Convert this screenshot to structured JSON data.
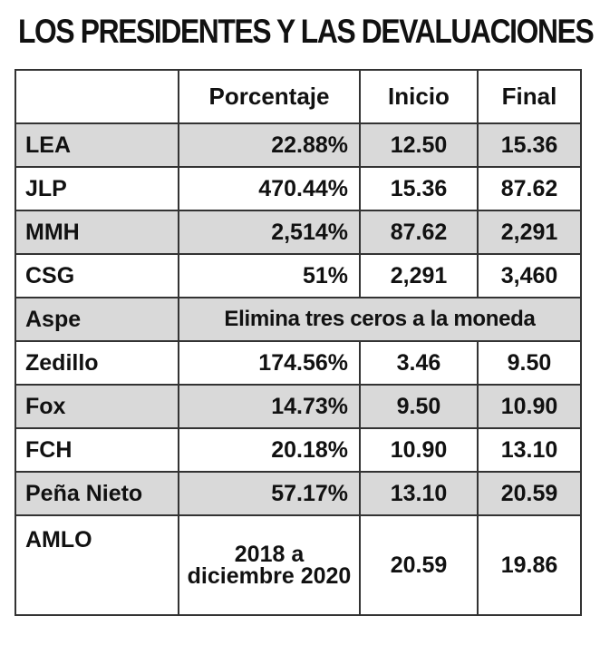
{
  "title": "LOS PRESIDENTES Y LAS DEVALUACIONES",
  "headers": {
    "blank": "",
    "porcentaje": "Porcentaje",
    "inicio": "Inicio",
    "final": "Final"
  },
  "rows": [
    {
      "name": "LEA",
      "porcentaje": "22.88%",
      "inicio": "12.50",
      "final": "15.36"
    },
    {
      "name": "JLP",
      "porcentaje": "470.44%",
      "inicio": "15.36",
      "final": "87.62"
    },
    {
      "name": "MMH",
      "porcentaje": "2,514%",
      "inicio": "87.62",
      "final": "2,291"
    },
    {
      "name": "CSG",
      "porcentaje": "51%",
      "inicio": "2,291",
      "final": "3,460"
    },
    {
      "name": "Aspe",
      "note": "Elimina tres ceros a la moneda"
    },
    {
      "name": "Zedillo",
      "porcentaje": "174.56%",
      "inicio": "3.46",
      "final": "9.50"
    },
    {
      "name": "Fox",
      "porcentaje": "14.73%",
      "inicio": "9.50",
      "final": "10.90"
    },
    {
      "name": "FCH",
      "porcentaje": "20.18%",
      "inicio": "10.90",
      "final": "13.10"
    },
    {
      "name": "Peña Nieto",
      "porcentaje": "57.17%",
      "inicio": "13.10",
      "final": "20.59"
    },
    {
      "name": "AMLO",
      "porcentaje": "2018 a diciembre 2020",
      "inicio": "20.59",
      "final": "19.86"
    }
  ]
}
